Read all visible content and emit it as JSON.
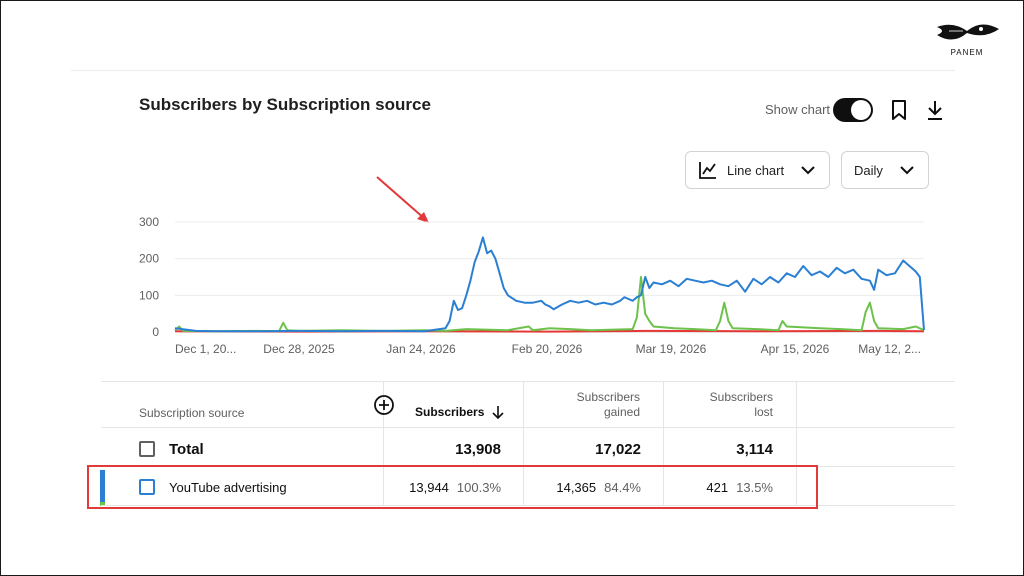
{
  "brand": {
    "logo_text": "PANEM"
  },
  "card": {
    "title": "Subscribers by Subscription source",
    "show_chart_label": "Show chart",
    "show_chart_on": true
  },
  "icons": {
    "bookmark": "bookmark-icon",
    "download": "download-icon",
    "line_chart": "line-chart-icon",
    "chevron": "chevron-down-icon",
    "add_column": "add-circle-icon",
    "sort": "arrow-down-icon"
  },
  "controls": {
    "chart_type": "Line chart",
    "granularity": "Daily"
  },
  "colors": {
    "blue": "#2a7fd3",
    "green": "#6cc24a",
    "red": "#e53935",
    "annotation_red": "#e03a3a"
  },
  "chart_data": {
    "type": "line",
    "x_tick_labels": [
      "Dec 1, 20...",
      "Dec 28, 2025",
      "Jan 24, 2026",
      "Feb 20, 2026",
      "Mar 19, 2026",
      "Apr 15, 2026",
      "May 12, 2..."
    ],
    "y_ticks": [
      0,
      100,
      200,
      300
    ],
    "ylim": [
      0,
      300
    ],
    "days": 176,
    "series": [
      {
        "color": "#2a7fd3",
        "points": [
          [
            0,
            10
          ],
          [
            5,
            3
          ],
          [
            10,
            2
          ],
          [
            20,
            2
          ],
          [
            30,
            3
          ],
          [
            40,
            2
          ],
          [
            50,
            3
          ],
          [
            60,
            2
          ],
          [
            65,
            10
          ],
          [
            66,
            30
          ],
          [
            67,
            85
          ],
          [
            68,
            60
          ],
          [
            69,
            65
          ],
          [
            70,
            100
          ],
          [
            71,
            140
          ],
          [
            72,
            190
          ],
          [
            73,
            220
          ],
          [
            74,
            258
          ],
          [
            75,
            215
          ],
          [
            76,
            222
          ],
          [
            77,
            200
          ],
          [
            78,
            160
          ],
          [
            79,
            120
          ],
          [
            80,
            100
          ],
          [
            82,
            85
          ],
          [
            84,
            80
          ],
          [
            86,
            80
          ],
          [
            88,
            85
          ],
          [
            89,
            75
          ],
          [
            90,
            70
          ],
          [
            91,
            62
          ],
          [
            93,
            75
          ],
          [
            95,
            85
          ],
          [
            97,
            80
          ],
          [
            99,
            85
          ],
          [
            101,
            75
          ],
          [
            103,
            80
          ],
          [
            105,
            75
          ],
          [
            107,
            85
          ],
          [
            108,
            95
          ],
          [
            109,
            90
          ],
          [
            110,
            85
          ],
          [
            111,
            95
          ],
          [
            112,
            100
          ],
          [
            113,
            150
          ],
          [
            114,
            120
          ],
          [
            115,
            135
          ],
          [
            117,
            130
          ],
          [
            119,
            140
          ],
          [
            121,
            125
          ],
          [
            123,
            145
          ],
          [
            125,
            140
          ],
          [
            127,
            135
          ],
          [
            129,
            140
          ],
          [
            131,
            130
          ],
          [
            133,
            125
          ],
          [
            135,
            140
          ],
          [
            137,
            110
          ],
          [
            139,
            145
          ],
          [
            141,
            130
          ],
          [
            143,
            150
          ],
          [
            145,
            135
          ],
          [
            147,
            160
          ],
          [
            149,
            150
          ],
          [
            151,
            180
          ],
          [
            153,
            155
          ],
          [
            155,
            165
          ],
          [
            157,
            150
          ],
          [
            159,
            175
          ],
          [
            161,
            160
          ],
          [
            163,
            170
          ],
          [
            165,
            145
          ],
          [
            167,
            140
          ],
          [
            168,
            115
          ],
          [
            169,
            170
          ],
          [
            171,
            155
          ],
          [
            173,
            160
          ],
          [
            175,
            195
          ],
          [
            176,
            185
          ],
          [
            177,
            175
          ],
          [
            178,
            165
          ],
          [
            179,
            150
          ],
          [
            180,
            5
          ]
        ]
      },
      {
        "color": "#6cc24a",
        "points": [
          [
            0,
            5
          ],
          [
            1,
            15
          ],
          [
            2,
            3
          ],
          [
            10,
            2
          ],
          [
            20,
            3
          ],
          [
            25,
            2
          ],
          [
            26,
            25
          ],
          [
            27,
            5
          ],
          [
            30,
            3
          ],
          [
            40,
            5
          ],
          [
            50,
            3
          ],
          [
            60,
            5
          ],
          [
            65,
            3
          ],
          [
            70,
            8
          ],
          [
            80,
            5
          ],
          [
            85,
            15
          ],
          [
            86,
            5
          ],
          [
            90,
            10
          ],
          [
            95,
            8
          ],
          [
            100,
            5
          ],
          [
            110,
            8
          ],
          [
            111,
            40
          ],
          [
            112,
            150
          ],
          [
            113,
            50
          ],
          [
            114,
            30
          ],
          [
            115,
            15
          ],
          [
            120,
            10
          ],
          [
            125,
            8
          ],
          [
            130,
            5
          ],
          [
            131,
            30
          ],
          [
            132,
            80
          ],
          [
            133,
            30
          ],
          [
            134,
            10
          ],
          [
            140,
            8
          ],
          [
            145,
            5
          ],
          [
            146,
            30
          ],
          [
            147,
            15
          ],
          [
            155,
            10
          ],
          [
            160,
            8
          ],
          [
            165,
            5
          ],
          [
            166,
            55
          ],
          [
            167,
            80
          ],
          [
            168,
            30
          ],
          [
            169,
            10
          ],
          [
            175,
            8
          ],
          [
            178,
            15
          ],
          [
            180,
            5
          ]
        ]
      },
      {
        "color": "#e53935",
        "points": [
          [
            0,
            2
          ],
          [
            30,
            1
          ],
          [
            60,
            2
          ],
          [
            90,
            1
          ],
          [
            113,
            3
          ],
          [
            140,
            2
          ],
          [
            170,
            3
          ],
          [
            180,
            2
          ]
        ]
      }
    ]
  },
  "table": {
    "headers": {
      "source": "Subscription source",
      "subscribers": "Subscribers",
      "gained_line1": "Subscribers",
      "gained_line2": "gained",
      "lost_line1": "Subscribers",
      "lost_line2": "lost"
    },
    "total": {
      "label": "Total",
      "subscribers": "13,908",
      "gained": "17,022",
      "lost": "3,114"
    },
    "rows": [
      {
        "label": "YouTube advertising",
        "subscribers": "13,944",
        "subscribers_pct": "100.3%",
        "gained": "14,365",
        "gained_pct": "84.4%",
        "lost": "421",
        "lost_pct": "13.5%"
      }
    ]
  }
}
